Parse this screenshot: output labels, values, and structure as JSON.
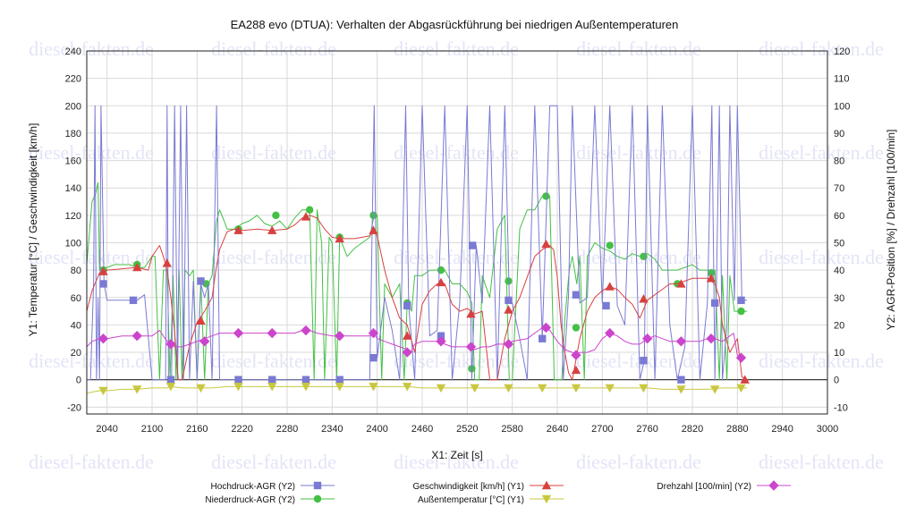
{
  "watermark": "diesel-fakten.de",
  "chart_data": {
    "type": "line",
    "title": "EA288 evo (DTUA): Verhalten der Abgasrückführung bei niedrigen Außentemperaturen",
    "xlabel": "X1: Zeit [s]",
    "ylabel": "Y1: Temperatur [°C] / Geschwindigkeit [km/h]",
    "y2label": "Y2: AGR-Position [%] / Drehzahl [100/min]",
    "xlim": [
      2013,
      3000
    ],
    "ylim": [
      -25,
      240
    ],
    "y2lim": [
      -12.5,
      120
    ],
    "x_ticks": [
      2040,
      2100,
      2160,
      2220,
      2280,
      2340,
      2400,
      2460,
      2520,
      2580,
      2640,
      2700,
      2760,
      2820,
      2880,
      2940,
      3000
    ],
    "y_ticks": [
      -20,
      0,
      20,
      40,
      60,
      80,
      100,
      120,
      140,
      160,
      180,
      200,
      220,
      240
    ],
    "y2_ticks": [
      -10,
      0,
      10,
      20,
      30,
      40,
      50,
      60,
      70,
      80,
      90,
      100,
      110,
      120
    ],
    "grid": true,
    "legend_position": "bottom",
    "series": [
      {
        "name": "Hochdruck-AGR (Y2)",
        "axis": "y2",
        "color": "#7a7ad4",
        "marker": "square",
        "x": [
          2013,
          2018,
          2022,
          2024,
          2026,
          2028,
          2030,
          2032,
          2036,
          2040,
          2050,
          2060,
          2070,
          2080,
          2090,
          2100,
          2103,
          2106,
          2110,
          2115,
          2118,
          2120,
          2122,
          2126,
          2130,
          2134,
          2138,
          2142,
          2146,
          2150,
          2155,
          2160,
          2165,
          2170,
          2175,
          2180,
          2186,
          2190,
          2200,
          2220,
          2240,
          2260,
          2280,
          2300,
          2310,
          2320,
          2330,
          2340,
          2350,
          2360,
          2370,
          2380,
          2390,
          2396,
          2400,
          2410,
          2420,
          2430,
          2438,
          2442,
          2450,
          2460,
          2470,
          2480,
          2490,
          2500,
          2510,
          2520,
          2526,
          2532,
          2540,
          2550,
          2560,
          2570,
          2576,
          2580,
          2590,
          2600,
          2610,
          2620,
          2630,
          2640,
          2648,
          2655,
          2660,
          2670,
          2680,
          2690,
          2700,
          2710,
          2720,
          2730,
          2740,
          2750,
          2756,
          2760,
          2770,
          2780,
          2790,
          2800,
          2810,
          2820,
          2830,
          2840,
          2846,
          2850,
          2856,
          2860,
          2866,
          2870,
          2876,
          2880,
          2886,
          2893
        ],
        "y": [
          0,
          0,
          35,
          100,
          0,
          30,
          0,
          100,
          35,
          29,
          29,
          29,
          29,
          29,
          31,
          0,
          0,
          0,
          0,
          0,
          0,
          100,
          0,
          0,
          100,
          0,
          100,
          0,
          100,
          0,
          36,
          0,
          35,
          30,
          35,
          0,
          100,
          0,
          0,
          0,
          0,
          0,
          0,
          0,
          0,
          0,
          0,
          0,
          0,
          0,
          0,
          0,
          0,
          100,
          8,
          30,
          18,
          0,
          100,
          27,
          0,
          100,
          16,
          18,
          100,
          0,
          28,
          100,
          0,
          49,
          28,
          100,
          0,
          100,
          30,
          28,
          15,
          0,
          100,
          15,
          100,
          100,
          0,
          31,
          100,
          28,
          30,
          100,
          28,
          100,
          27,
          20,
          100,
          0,
          7,
          100,
          0,
          100,
          20,
          0,
          12,
          100,
          0,
          28,
          100,
          0,
          100,
          0,
          20,
          100,
          29,
          100,
          29,
          29
        ],
        "markers_x": [
          2035,
          2075,
          2125,
          2165,
          2215,
          2260,
          2305,
          2350,
          2395,
          2440,
          2485,
          2527,
          2575,
          2620,
          2665,
          2705,
          2755,
          2805,
          2850,
          2885
        ],
        "markers_y": [
          35,
          29,
          0,
          36,
          0,
          0,
          0,
          0,
          8,
          27,
          16,
          49,
          29,
          15,
          31,
          27,
          7,
          0,
          28,
          29
        ]
      },
      {
        "name": "Niederdruck-AGR (Y2)",
        "axis": "y2",
        "color": "#44c044",
        "marker": "circle",
        "x": [
          2013,
          2020,
          2025,
          2028,
          2030,
          2034,
          2040,
          2050,
          2060,
          2070,
          2080,
          2090,
          2100,
          2104,
          2110,
          2115,
          2120,
          2124,
          2128,
          2132,
          2136,
          2140,
          2144,
          2150,
          2155,
          2160,
          2165,
          2170,
          2175,
          2180,
          2186,
          2190,
          2196,
          2200,
          2210,
          2220,
          2230,
          2240,
          2250,
          2260,
          2270,
          2280,
          2290,
          2300,
          2310,
          2316,
          2320,
          2326,
          2330,
          2336,
          2340,
          2346,
          2350,
          2360,
          2370,
          2380,
          2390,
          2396,
          2400,
          2406,
          2410,
          2420,
          2430,
          2436,
          2440,
          2446,
          2450,
          2460,
          2470,
          2480,
          2490,
          2500,
          2510,
          2520,
          2526,
          2530,
          2536,
          2540,
          2550,
          2560,
          2570,
          2576,
          2580,
          2590,
          2600,
          2610,
          2620,
          2630,
          2636,
          2640,
          2646,
          2650,
          2656,
          2660,
          2666,
          2670,
          2676,
          2680,
          2690,
          2700,
          2710,
          2720,
          2730,
          2740,
          2750,
          2760,
          2770,
          2780,
          2790,
          2800,
          2810,
          2820,
          2830,
          2840,
          2850,
          2856,
          2860,
          2866,
          2870,
          2876,
          2880,
          2886,
          2893
        ],
        "y": [
          42,
          65,
          68,
          72,
          40,
          41,
          41,
          42,
          42,
          42,
          41,
          41,
          45,
          45,
          0,
          40,
          40,
          0,
          38,
          0,
          40,
          0,
          40,
          38,
          40,
          0,
          36,
          0,
          35,
          38,
          58,
          62,
          58,
          55,
          55,
          57,
          58,
          60,
          57,
          56,
          58,
          55,
          59,
          62,
          62,
          0,
          62,
          50,
          0,
          52,
          50,
          0,
          52,
          45,
          48,
          50,
          52,
          60,
          60,
          0,
          35,
          30,
          35,
          0,
          28,
          25,
          38,
          38,
          40,
          40,
          40,
          35,
          35,
          32,
          28,
          0,
          0,
          38,
          30,
          55,
          60,
          0,
          0,
          55,
          62,
          62,
          67,
          67,
          0,
          0,
          0,
          22,
          40,
          45,
          35,
          45,
          0,
          45,
          50,
          48,
          47,
          45,
          44,
          46,
          45,
          46,
          44,
          40,
          40,
          40,
          41,
          42,
          40,
          40,
          40,
          0,
          38,
          0,
          38,
          25,
          25,
          25,
          25
        ],
        "markers_x": [
          2035,
          2080,
          2125,
          2172,
          2215,
          2265,
          2310,
          2350,
          2395,
          2440,
          2485,
          2526,
          2575,
          2625,
          2665,
          2710,
          2755,
          2800,
          2845,
          2885
        ],
        "markers_y": [
          40,
          42,
          0,
          35,
          55,
          60,
          62,
          52,
          60,
          28,
          40,
          4,
          36,
          67,
          19,
          49,
          45,
          35,
          39,
          25
        ]
      },
      {
        "name": "Geschwindigkeit [km/h] (Y1)",
        "axis": "y1",
        "color": "#d84040",
        "marker": "triangle-up",
        "x": [
          2013,
          2020,
          2030,
          2040,
          2060,
          2080,
          2095,
          2100,
          2110,
          2115,
          2120,
          2125,
          2130,
          2135,
          2140,
          2150,
          2160,
          2170,
          2180,
          2185,
          2190,
          2200,
          2210,
          2220,
          2240,
          2260,
          2280,
          2290,
          2300,
          2310,
          2320,
          2330,
          2340,
          2350,
          2360,
          2370,
          2380,
          2390,
          2395,
          2400,
          2410,
          2420,
          2430,
          2440,
          2445,
          2450,
          2460,
          2470,
          2480,
          2490,
          2500,
          2510,
          2520,
          2530,
          2540,
          2550,
          2560,
          2570,
          2580,
          2590,
          2600,
          2610,
          2620,
          2630,
          2635,
          2640,
          2645,
          2650,
          2655,
          2660,
          2670,
          2680,
          2690,
          2700,
          2710,
          2720,
          2730,
          2740,
          2750,
          2760,
          2770,
          2780,
          2790,
          2800,
          2810,
          2820,
          2830,
          2840,
          2850,
          2856,
          2860,
          2870,
          2880,
          2886,
          2893
        ],
        "y": [
          50,
          65,
          78,
          80,
          81,
          82,
          80,
          90,
          98,
          90,
          80,
          60,
          35,
          0,
          0,
          25,
          42,
          50,
          60,
          80,
          95,
          108,
          110,
          109,
          110,
          109,
          110,
          113,
          118,
          120,
          118,
          110,
          104,
          103,
          103,
          103,
          104,
          105,
          108,
          105,
          80,
          60,
          45,
          40,
          30,
          20,
          55,
          65,
          70,
          70,
          55,
          50,
          52,
          48,
          50,
          0,
          0,
          30,
          50,
          60,
          75,
          90,
          95,
          98,
          95,
          75,
          40,
          20,
          5,
          0,
          30,
          50,
          60,
          65,
          68,
          66,
          60,
          55,
          45,
          58,
          62,
          66,
          70,
          70,
          72,
          74,
          74,
          74,
          70,
          60,
          40,
          20,
          30,
          2,
          0
        ],
        "markers_x": [
          2035,
          2080,
          2120,
          2165,
          2215,
          2260,
          2305,
          2350,
          2395,
          2440,
          2485,
          2525,
          2575,
          2625,
          2665,
          2710,
          2755,
          2805,
          2845,
          2890
        ],
        "markers_y": [
          79,
          82,
          85,
          43,
          109,
          109,
          119,
          103,
          109,
          32,
          71,
          48,
          51,
          99,
          7,
          68,
          59,
          70,
          74,
          0
        ]
      },
      {
        "name": "Außentemperatur [°C] (Y1)",
        "axis": "y1",
        "color": "#c8c840",
        "marker": "triangle-down",
        "x": [
          2013,
          2020,
          2030,
          2040,
          2060,
          2080,
          2100,
          2120,
          2125,
          2140,
          2160,
          2180,
          2200,
          2220,
          2240,
          2260,
          2280,
          2300,
          2320,
          2340,
          2360,
          2380,
          2400,
          2420,
          2440,
          2460,
          2480,
          2500,
          2520,
          2540,
          2560,
          2580,
          2600,
          2620,
          2640,
          2660,
          2680,
          2700,
          2720,
          2740,
          2760,
          2780,
          2800,
          2820,
          2840,
          2860,
          2880,
          2893
        ],
        "y": [
          -10,
          -9,
          -8,
          -8,
          -7,
          -7,
          -6,
          -6,
          -5,
          -6,
          -6,
          -6,
          -5,
          -5,
          -5,
          -5,
          -5,
          -5,
          -5,
          -5,
          -5,
          -5,
          -5,
          -5,
          -5,
          -6,
          -6,
          -6,
          -6,
          -6,
          -6,
          -6,
          -6,
          -6,
          -6,
          -6,
          -6,
          -6,
          -6,
          -6,
          -6,
          -7,
          -7,
          -7,
          -7,
          -6,
          -6,
          -6
        ],
        "markers_x": [
          2035,
          2080,
          2125,
          2165,
          2215,
          2260,
          2305,
          2350,
          2395,
          2440,
          2485,
          2530,
          2575,
          2620,
          2665,
          2710,
          2755,
          2805,
          2850,
          2885
        ],
        "markers_y": [
          -8,
          -7,
          -5,
          -6,
          -5,
          -5,
          -5,
          -5,
          -5,
          -5,
          -6,
          -6,
          -6,
          -6,
          -6,
          -6,
          -6,
          -7,
          -7,
          -6
        ]
      },
      {
        "name": "Drehzahl [100/min] (Y2)",
        "axis": "y2",
        "color": "#cc44cc",
        "marker": "diamond",
        "x": [
          2013,
          2020,
          2030,
          2040,
          2060,
          2080,
          2100,
          2110,
          2120,
          2125,
          2130,
          2140,
          2150,
          2160,
          2170,
          2180,
          2190,
          2200,
          2220,
          2240,
          2260,
          2280,
          2290,
          2300,
          2310,
          2320,
          2340,
          2360,
          2380,
          2390,
          2395,
          2400,
          2410,
          2420,
          2430,
          2440,
          2445,
          2450,
          2460,
          2470,
          2480,
          2490,
          2500,
          2510,
          2520,
          2530,
          2540,
          2550,
          2560,
          2570,
          2580,
          2600,
          2620,
          2630,
          2640,
          2650,
          2660,
          2665,
          2670,
          2680,
          2690,
          2700,
          2710,
          2720,
          2730,
          2740,
          2750,
          2760,
          2770,
          2780,
          2790,
          2800,
          2810,
          2820,
          2830,
          2840,
          2850,
          2860,
          2870,
          2875,
          2880,
          2890
        ],
        "y": [
          12,
          14,
          15,
          15,
          16,
          16,
          16,
          18,
          14,
          13,
          12,
          12,
          13,
          14,
          15,
          16,
          17,
          17,
          17,
          17,
          17,
          17,
          17,
          18,
          18,
          17,
          16,
          16,
          16,
          16,
          17,
          15,
          14,
          13,
          12,
          11,
          10,
          13,
          14,
          14,
          14,
          13,
          12,
          12,
          12,
          11,
          12,
          12,
          13,
          13,
          14,
          15,
          19,
          18,
          14,
          11,
          10,
          9,
          10,
          10,
          11,
          15,
          17,
          16,
          14,
          13,
          13,
          15,
          16,
          15,
          14,
          14,
          14,
          14,
          14,
          15,
          15,
          14,
          16,
          17,
          9,
          8
        ],
        "markers_x": [
          2035,
          2080,
          2125,
          2170,
          2215,
          2260,
          2305,
          2350,
          2395,
          2440,
          2485,
          2525,
          2575,
          2625,
          2665,
          2710,
          2760,
          2805,
          2845,
          2885
        ],
        "markers_y": [
          15,
          16,
          13,
          14,
          17,
          17,
          18,
          16,
          17,
          10,
          14,
          12,
          13,
          19,
          9,
          17,
          15,
          14,
          15,
          8
        ]
      }
    ]
  }
}
